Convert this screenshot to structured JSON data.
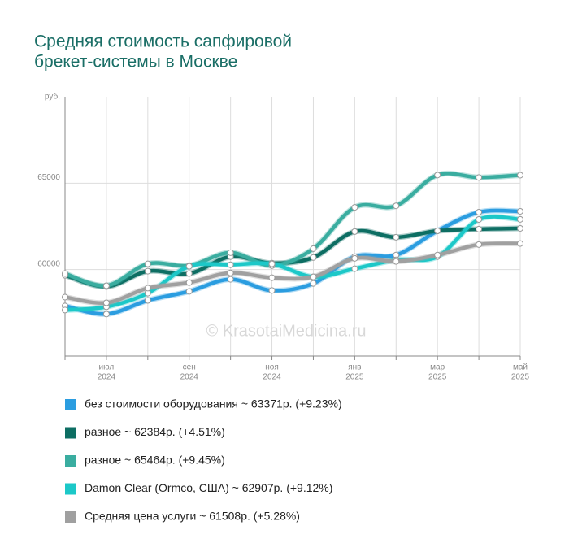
{
  "chart_data": {
    "type": "line",
    "title": [
      "Средняя стоимость сапфировой",
      "брекет-системы в Москве"
    ],
    "y_label": "руб.",
    "watermark": "© KrasotaiMedicina.ru",
    "categories": [
      null,
      "июл",
      null,
      "сен",
      null,
      "ноя",
      null,
      "янв",
      null,
      "мар",
      null,
      "май"
    ],
    "category_years": [
      null,
      "2024",
      null,
      "2024",
      null,
      "2024",
      null,
      "2025",
      null,
      "2025",
      null,
      "2025"
    ],
    "ylim": [
      55000,
      70000
    ],
    "yticks": [
      60000,
      65000
    ],
    "grid": true,
    "series": [
      {
        "name": "без стоимости оборудования ~ 63371р. (+9.23%)",
        "color": "#2b9de0",
        "values": [
          57900,
          57430,
          58220,
          58740,
          59440,
          58790,
          59200,
          60750,
          60840,
          62240,
          63320,
          63371
        ]
      },
      {
        "name": "разное ~ 62384р. (+4.51%)",
        "color": "#0d6e63",
        "values": [
          59670,
          59020,
          59910,
          59770,
          60750,
          60370,
          60700,
          62200,
          61870,
          62240,
          62340,
          62384
        ]
      },
      {
        "name": "разное ~ 65464р. (+9.45%)",
        "color": "#3aada0",
        "values": [
          59770,
          59070,
          60330,
          60230,
          60980,
          60230,
          61210,
          63600,
          63690,
          65470,
          65330,
          65464
        ]
      },
      {
        "name": "Damon Clear (Ormco, США) ~ 62907р. (+9.12%)",
        "color": "#1cc8c8",
        "values": [
          57660,
          57850,
          58640,
          60190,
          60280,
          60330,
          59580,
          60050,
          60560,
          60750,
          62900,
          62907
        ]
      },
      {
        "name": "Средняя цена услуги ~ 61508р. (+5.28%)",
        "color": "#a0a0a0",
        "values": [
          58410,
          58080,
          58930,
          59250,
          59810,
          59530,
          59580,
          60650,
          60470,
          60840,
          61450,
          61508
        ]
      }
    ]
  }
}
